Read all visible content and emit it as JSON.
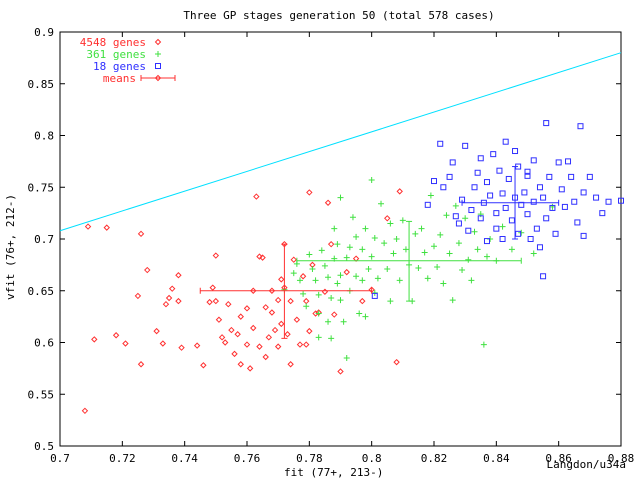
{
  "chart_data": {
    "type": "scatter",
    "title": "Three GP stages generation 50 (total 578 cases)",
    "xlabel": "fit  (77+, 213-)",
    "ylabel": "vfit (76+, 212-)",
    "corner_label": "Langdon/u34a",
    "xlim": [
      0.7,
      0.88
    ],
    "ylim": [
      0.5,
      0.9
    ],
    "xticks": [
      "0.7",
      "0.72",
      "0.74",
      "0.76",
      "0.78",
      "0.8",
      "0.82",
      "0.84",
      "0.86",
      "0.88"
    ],
    "yticks": [
      "0.5",
      "0.55",
      "0.6",
      "0.65",
      "0.7",
      "0.75",
      "0.8",
      "0.85",
      "0.9"
    ],
    "grid": false,
    "legend_position": "top-left",
    "reference_line": {
      "x": [
        0.7,
        0.88
      ],
      "y": [
        0.708,
        0.88
      ],
      "color": "#00e0ff"
    },
    "series": [
      {
        "name": "4548 genes",
        "color": "#ff3030",
        "marker": "diamond",
        "points": [
          [
            0.708,
            0.534
          ],
          [
            0.709,
            0.712
          ],
          [
            0.711,
            0.603
          ],
          [
            0.715,
            0.711
          ],
          [
            0.718,
            0.607
          ],
          [
            0.721,
            0.599
          ],
          [
            0.726,
            0.579
          ],
          [
            0.725,
            0.645
          ],
          [
            0.726,
            0.705
          ],
          [
            0.728,
            0.67
          ],
          [
            0.731,
            0.611
          ],
          [
            0.733,
            0.599
          ],
          [
            0.734,
            0.637
          ],
          [
            0.735,
            0.643
          ],
          [
            0.736,
            0.652
          ],
          [
            0.738,
            0.64
          ],
          [
            0.738,
            0.665
          ],
          [
            0.739,
            0.595
          ],
          [
            0.744,
            0.597
          ],
          [
            0.746,
            0.578
          ],
          [
            0.748,
            0.639
          ],
          [
            0.749,
            0.653
          ],
          [
            0.75,
            0.64
          ],
          [
            0.75,
            0.684
          ],
          [
            0.751,
            0.622
          ],
          [
            0.752,
            0.605
          ],
          [
            0.753,
            0.6
          ],
          [
            0.754,
            0.637
          ],
          [
            0.755,
            0.612
          ],
          [
            0.756,
            0.589
          ],
          [
            0.757,
            0.608
          ],
          [
            0.758,
            0.625
          ],
          [
            0.758,
            0.579
          ],
          [
            0.76,
            0.633
          ],
          [
            0.76,
            0.598
          ],
          [
            0.761,
            0.575
          ],
          [
            0.762,
            0.65
          ],
          [
            0.762,
            0.614
          ],
          [
            0.763,
            0.741
          ],
          [
            0.764,
            0.596
          ],
          [
            0.764,
            0.683
          ],
          [
            0.765,
            0.682
          ],
          [
            0.766,
            0.634
          ],
          [
            0.766,
            0.586
          ],
          [
            0.767,
            0.605
          ],
          [
            0.768,
            0.65
          ],
          [
            0.768,
            0.629
          ],
          [
            0.769,
            0.612
          ],
          [
            0.77,
            0.596
          ],
          [
            0.77,
            0.641
          ],
          [
            0.771,
            0.661
          ],
          [
            0.771,
            0.618
          ],
          [
            0.772,
            0.695
          ],
          [
            0.772,
            0.653
          ],
          [
            0.773,
            0.608
          ],
          [
            0.774,
            0.64
          ],
          [
            0.774,
            0.579
          ],
          [
            0.775,
            0.68
          ],
          [
            0.776,
            0.622
          ],
          [
            0.777,
            0.598
          ],
          [
            0.778,
            0.664
          ],
          [
            0.779,
            0.64
          ],
          [
            0.78,
            0.745
          ],
          [
            0.78,
            0.611
          ],
          [
            0.781,
            0.675
          ],
          [
            0.783,
            0.629
          ],
          [
            0.785,
            0.649
          ],
          [
            0.786,
            0.735
          ],
          [
            0.787,
            0.695
          ],
          [
            0.788,
            0.627
          ],
          [
            0.79,
            0.572
          ],
          [
            0.792,
            0.668
          ],
          [
            0.795,
            0.681
          ],
          [
            0.797,
            0.64
          ],
          [
            0.8,
            0.651
          ],
          [
            0.805,
            0.72
          ],
          [
            0.809,
            0.746
          ],
          [
            0.808,
            0.581
          ],
          [
            0.782,
            0.628
          ],
          [
            0.779,
            0.598
          ]
        ],
        "mean": {
          "x": 0.772,
          "y": 0.65,
          "x_err": [
            0.745,
            0.8
          ],
          "y_err": [
            0.604,
            0.695
          ]
        }
      },
      {
        "name": "361 genes",
        "color": "#40e040",
        "marker": "plus",
        "points": [
          [
            0.772,
            0.651
          ],
          [
            0.775,
            0.667
          ],
          [
            0.776,
            0.676
          ],
          [
            0.777,
            0.66
          ],
          [
            0.778,
            0.647
          ],
          [
            0.779,
            0.635
          ],
          [
            0.78,
            0.685
          ],
          [
            0.781,
            0.671
          ],
          [
            0.782,
            0.66
          ],
          [
            0.783,
            0.646
          ],
          [
            0.783,
            0.628
          ],
          [
            0.784,
            0.689
          ],
          [
            0.785,
            0.674
          ],
          [
            0.786,
            0.663
          ],
          [
            0.786,
            0.62
          ],
          [
            0.787,
            0.643
          ],
          [
            0.788,
            0.681
          ],
          [
            0.788,
            0.71
          ],
          [
            0.789,
            0.657
          ],
          [
            0.789,
            0.695
          ],
          [
            0.79,
            0.665
          ],
          [
            0.79,
            0.641
          ],
          [
            0.79,
            0.74
          ],
          [
            0.791,
            0.62
          ],
          [
            0.792,
            0.682
          ],
          [
            0.793,
            0.692
          ],
          [
            0.793,
            0.65
          ],
          [
            0.794,
            0.721
          ],
          [
            0.795,
            0.702
          ],
          [
            0.795,
            0.664
          ],
          [
            0.796,
            0.628
          ],
          [
            0.797,
            0.69
          ],
          [
            0.797,
            0.66
          ],
          [
            0.798,
            0.71
          ],
          [
            0.799,
            0.671
          ],
          [
            0.8,
            0.683
          ],
          [
            0.8,
            0.757
          ],
          [
            0.801,
            0.701
          ],
          [
            0.801,
            0.648
          ],
          [
            0.802,
            0.662
          ],
          [
            0.803,
            0.734
          ],
          [
            0.804,
            0.696
          ],
          [
            0.805,
            0.671
          ],
          [
            0.806,
            0.64
          ],
          [
            0.806,
            0.715
          ],
          [
            0.807,
            0.686
          ],
          [
            0.808,
            0.7
          ],
          [
            0.809,
            0.66
          ],
          [
            0.81,
            0.718
          ],
          [
            0.811,
            0.69
          ],
          [
            0.812,
            0.675
          ],
          [
            0.813,
            0.64
          ],
          [
            0.814,
            0.705
          ],
          [
            0.815,
            0.672
          ],
          [
            0.816,
            0.71
          ],
          [
            0.817,
            0.687
          ],
          [
            0.818,
            0.662
          ],
          [
            0.819,
            0.742
          ],
          [
            0.82,
            0.693
          ],
          [
            0.821,
            0.673
          ],
          [
            0.822,
            0.704
          ],
          [
            0.823,
            0.657
          ],
          [
            0.824,
            0.723
          ],
          [
            0.825,
            0.686
          ],
          [
            0.826,
            0.641
          ],
          [
            0.827,
            0.732
          ],
          [
            0.828,
            0.696
          ],
          [
            0.829,
            0.67
          ],
          [
            0.83,
            0.72
          ],
          [
            0.831,
            0.68
          ],
          [
            0.832,
            0.66
          ],
          [
            0.833,
            0.707
          ],
          [
            0.834,
            0.69
          ],
          [
            0.835,
            0.724
          ],
          [
            0.836,
            0.598
          ],
          [
            0.837,
            0.683
          ],
          [
            0.838,
            0.7
          ],
          [
            0.84,
            0.679
          ],
          [
            0.842,
            0.712
          ],
          [
            0.845,
            0.69
          ],
          [
            0.848,
            0.706
          ],
          [
            0.852,
            0.686
          ],
          [
            0.858,
            0.731
          ],
          [
            0.792,
            0.585
          ],
          [
            0.787,
            0.604
          ],
          [
            0.783,
            0.605
          ],
          [
            0.798,
            0.625
          ]
        ],
        "mean": {
          "x": 0.812,
          "y": 0.679,
          "x_err": [
            0.776,
            0.848
          ],
          "y_err": [
            0.64,
            0.717
          ]
        }
      },
      {
        "name": "18 genes",
        "color": "#3030ff",
        "marker": "square",
        "points": [
          [
            0.801,
            0.645
          ],
          [
            0.818,
            0.733
          ],
          [
            0.82,
            0.756
          ],
          [
            0.822,
            0.792
          ],
          [
            0.823,
            0.75
          ],
          [
            0.825,
            0.76
          ],
          [
            0.826,
            0.774
          ],
          [
            0.827,
            0.722
          ],
          [
            0.828,
            0.715
          ],
          [
            0.829,
            0.738
          ],
          [
            0.83,
            0.79
          ],
          [
            0.831,
            0.708
          ],
          [
            0.832,
            0.728
          ],
          [
            0.833,
            0.75
          ],
          [
            0.834,
            0.764
          ],
          [
            0.835,
            0.778
          ],
          [
            0.835,
            0.72
          ],
          [
            0.836,
            0.735
          ],
          [
            0.837,
            0.698
          ],
          [
            0.837,
            0.755
          ],
          [
            0.838,
            0.742
          ],
          [
            0.839,
            0.782
          ],
          [
            0.84,
            0.725
          ],
          [
            0.84,
            0.71
          ],
          [
            0.841,
            0.766
          ],
          [
            0.842,
            0.7
          ],
          [
            0.842,
            0.744
          ],
          [
            0.843,
            0.73
          ],
          [
            0.843,
            0.794
          ],
          [
            0.844,
            0.758
          ],
          [
            0.845,
            0.718
          ],
          [
            0.846,
            0.785
          ],
          [
            0.846,
            0.74
          ],
          [
            0.847,
            0.77
          ],
          [
            0.847,
            0.705
          ],
          [
            0.848,
            0.733
          ],
          [
            0.849,
            0.745
          ],
          [
            0.85,
            0.724
          ],
          [
            0.85,
            0.761
          ],
          [
            0.851,
            0.7
          ],
          [
            0.852,
            0.736
          ],
          [
            0.852,
            0.776
          ],
          [
            0.853,
            0.71
          ],
          [
            0.854,
            0.75
          ],
          [
            0.854,
            0.692
          ],
          [
            0.855,
            0.664
          ],
          [
            0.855,
            0.74
          ],
          [
            0.856,
            0.72
          ],
          [
            0.856,
            0.812
          ],
          [
            0.857,
            0.76
          ],
          [
            0.858,
            0.73
          ],
          [
            0.859,
            0.705
          ],
          [
            0.86,
            0.774
          ],
          [
            0.861,
            0.748
          ],
          [
            0.862,
            0.731
          ],
          [
            0.863,
            0.775
          ],
          [
            0.864,
            0.76
          ],
          [
            0.865,
            0.736
          ],
          [
            0.866,
            0.716
          ],
          [
            0.867,
            0.809
          ],
          [
            0.868,
            0.703
          ],
          [
            0.868,
            0.745
          ],
          [
            0.87,
            0.76
          ],
          [
            0.872,
            0.74
          ],
          [
            0.874,
            0.725
          ],
          [
            0.876,
            0.736
          ],
          [
            0.88,
            0.737
          ],
          [
            0.85,
            0.765
          ]
        ],
        "mean": {
          "x": 0.846,
          "y": 0.735,
          "x_err": [
            0.829,
            0.86
          ],
          "y_err": [
            0.7,
            0.77
          ]
        }
      }
    ],
    "means_legend": "means"
  }
}
